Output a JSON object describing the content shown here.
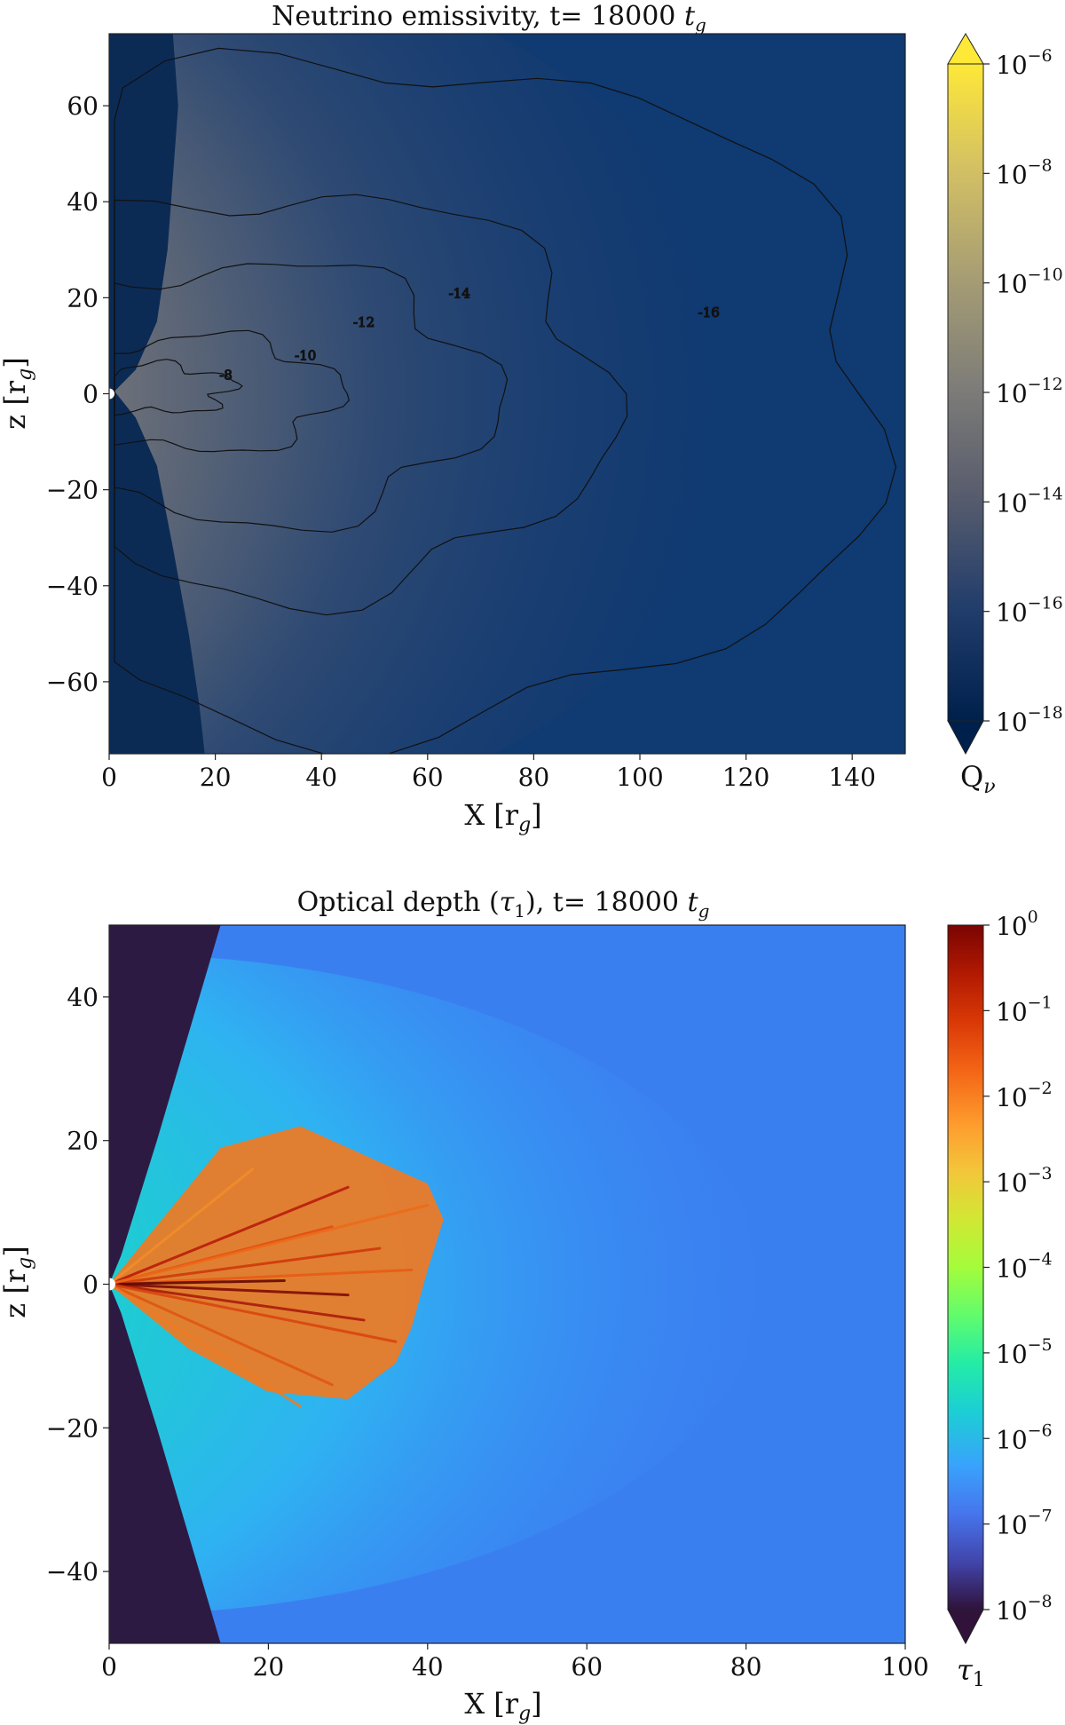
{
  "chart_data": [
    {
      "type": "heatmap",
      "title": "Neutrino emissivity, t= 18000 ",
      "title_time_unit": "t",
      "title_time_unit_sub": "g",
      "xlabel": "X [r",
      "xlabel_sub": "g",
      "xlabel_end": "]",
      "ylabel": "z [r",
      "ylabel_sub": "g",
      "ylabel_end": "]",
      "xlim": [
        0,
        150
      ],
      "ylim": [
        -75,
        75
      ],
      "xticks": [
        0,
        20,
        40,
        60,
        80,
        100,
        120,
        140
      ],
      "yticks": [
        60,
        40,
        20,
        0,
        -20,
        -40,
        -60
      ],
      "ytick_labels": [
        "60",
        "40",
        "20",
        "0",
        "−20",
        "−40",
        "−60"
      ],
      "colorbar": {
        "label": "Q",
        "label_sub": "ν",
        "scale": "log",
        "range_exp": [
          -18,
          -6
        ],
        "tick_exps": [
          -6,
          -8,
          -10,
          -12,
          -14,
          -16,
          -18
        ],
        "tick_base": "10",
        "tick_exp_labels": [
          "−6",
          "−8",
          "−10",
          "−12",
          "−14",
          "−16",
          "−18"
        ],
        "extend": "both",
        "colors": [
          "#00204c",
          "#213d6b",
          "#575c6d",
          "#7c7b78",
          "#a59c74",
          "#d3c064",
          "#fee838"
        ]
      },
      "contour_levels": [
        "-8",
        "-10",
        "-12",
        "-14",
        "-16"
      ],
      "contour_label_positions": [
        {
          "text": "-8",
          "x": 22,
          "y": 3
        },
        {
          "text": "-10",
          "x": 37,
          "y": 7
        },
        {
          "text": "-12",
          "x": 48,
          "y": 14
        },
        {
          "text": "-14",
          "x": 66,
          "y": 20
        },
        {
          "text": "-16",
          "x": 113,
          "y": 16
        }
      ]
    },
    {
      "type": "heatmap",
      "title": "Optical depth (",
      "title_symbol": "τ",
      "title_symbol_sub": "1",
      "title_rest": "), t= 18000 ",
      "title_time_unit": "t",
      "title_time_unit_sub": "g",
      "xlabel": "X [r",
      "xlabel_sub": "g",
      "xlabel_end": "]",
      "ylabel": "z [r",
      "ylabel_sub": "g",
      "ylabel_end": "]",
      "xlim": [
        0,
        100
      ],
      "ylim": [
        -50,
        50
      ],
      "xticks": [
        0,
        20,
        40,
        60,
        80,
        100
      ],
      "yticks": [
        40,
        20,
        0,
        -20,
        -40
      ],
      "ytick_labels": [
        "40",
        "20",
        "0",
        "−20",
        "−40"
      ],
      "colorbar": {
        "label": "τ",
        "label_sub": "1",
        "scale": "log",
        "range_exp": [
          -8,
          0
        ],
        "tick_exps": [
          0,
          -1,
          -2,
          -3,
          -4,
          -5,
          -6,
          -7,
          -8
        ],
        "tick_base": "10",
        "tick_exp_labels": [
          "0",
          "−1",
          "−2",
          "−3",
          "−4",
          "−5",
          "−6",
          "−7",
          "−8"
        ],
        "extend": "min",
        "colors": [
          "#30123b",
          "#4145ab",
          "#4675ed",
          "#39a2fc",
          "#1bcfd4",
          "#24eca6",
          "#61fc6c",
          "#a4fc3b",
          "#d1e834",
          "#f3c63a",
          "#fe9b2d",
          "#f36315",
          "#d93806",
          "#b11901",
          "#7a0402"
        ]
      }
    }
  ]
}
